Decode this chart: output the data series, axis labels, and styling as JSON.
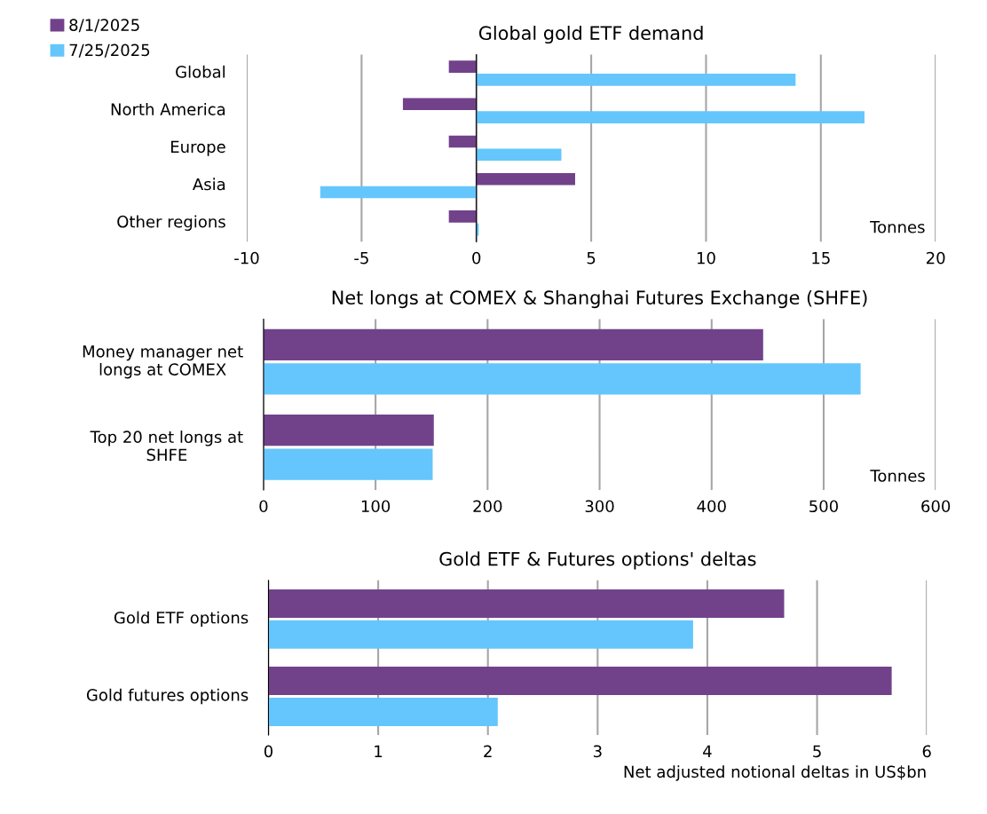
{
  "chart_data": [
    {
      "type": "bar",
      "orientation": "horizontal",
      "title": "Global gold ETF demand",
      "categories": [
        "Global",
        "North America",
        "Europe",
        "Asia",
        "Other regions"
      ],
      "series": [
        {
          "name": "8/1/2025",
          "color": "#71428a",
          "values": [
            -1.2,
            -3.2,
            -1.2,
            4.3,
            -1.2
          ]
        },
        {
          "name": "7/25/2025",
          "color": "#64c6fc",
          "values": [
            13.9,
            16.9,
            3.7,
            -6.8,
            0.1
          ]
        }
      ],
      "xlim": [
        -10,
        20
      ],
      "xticks": [
        -10,
        -5,
        0,
        5,
        10,
        15,
        20
      ],
      "grid": "x",
      "legend": "top left",
      "annotations": [
        "Tonnes"
      ]
    },
    {
      "type": "bar",
      "orientation": "horizontal",
      "title": "Net longs at COMEX & Shanghai Futures Exchange (SHFE)",
      "categories": [
        "Money manager net longs at COMEX",
        "Top 20 net longs at SHFE"
      ],
      "series": [
        {
          "color": "#71428a",
          "values": [
            446,
            152
          ]
        },
        {
          "color": "#64c6fc",
          "values": [
            533,
            151
          ]
        }
      ],
      "xlim": [
        0,
        600
      ],
      "xticks": [
        0,
        100,
        200,
        300,
        400,
        500,
        600
      ],
      "grid": "x",
      "annotations": [
        "Tonnes"
      ]
    },
    {
      "type": "bar",
      "orientation": "horizontal",
      "title": "Gold ETF & Futures options' deltas",
      "xlabel": "Net adjusted notional deltas in US$bn",
      "categories": [
        "Gold ETF options",
        "Gold futures options"
      ],
      "series": [
        {
          "color": "#71428a",
          "values": [
            4.7,
            5.68
          ]
        },
        {
          "color": "#64c6fc",
          "values": [
            3.87,
            2.09
          ]
        }
      ],
      "xlim": [
        0,
        6
      ],
      "xticks": [
        0,
        1,
        2,
        3,
        4,
        5,
        6
      ],
      "grid": "x"
    }
  ]
}
